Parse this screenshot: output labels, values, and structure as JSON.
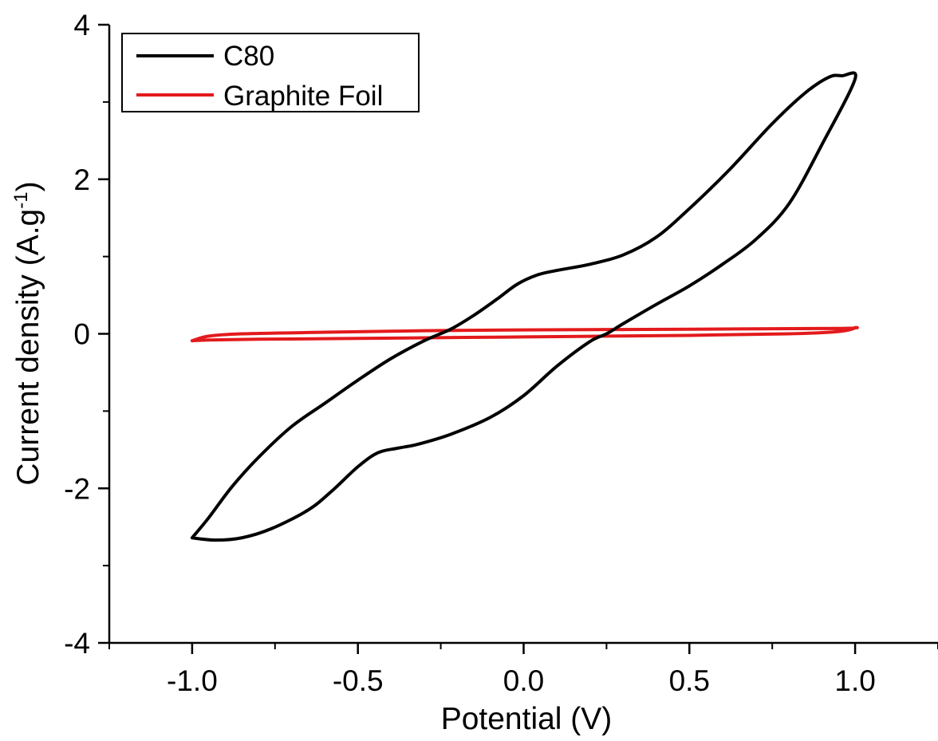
{
  "chart_data": {
    "type": "line",
    "xlabel": "Potential (V)",
    "ylabel": "Current density (A.g",
    "ylabel_sup": "-1",
    "ylabel_close": ")",
    "xlim": [
      -1.25,
      1.25
    ],
    "ylim": [
      -4,
      4
    ],
    "xticks": [
      -1.0,
      -0.5,
      0.0,
      0.5,
      1.0
    ],
    "xtick_labels": [
      "-1.0",
      "-0.5",
      "0.0",
      "0.5",
      "1.0"
    ],
    "yticks": [
      -4,
      -2,
      0,
      2,
      4
    ],
    "ytick_labels": [
      "-4",
      "-2",
      "0",
      "2",
      "4"
    ],
    "grid": false,
    "legend_position": "top-left",
    "series": [
      {
        "name": "C80",
        "color": "#000000",
        "points": [
          [
            -1.0,
            -2.64
          ],
          [
            -0.93,
            -2.67
          ],
          [
            -0.85,
            -2.64
          ],
          [
            -0.76,
            -2.52
          ],
          [
            -0.65,
            -2.28
          ],
          [
            -0.58,
            -2.04
          ],
          [
            -0.5,
            -1.72
          ],
          [
            -0.44,
            -1.54
          ],
          [
            -0.38,
            -1.48
          ],
          [
            -0.32,
            -1.43
          ],
          [
            -0.22,
            -1.3
          ],
          [
            -0.1,
            -1.08
          ],
          [
            0.0,
            -0.8
          ],
          [
            0.1,
            -0.42
          ],
          [
            0.2,
            -0.1
          ],
          [
            0.25,
            0.0
          ],
          [
            0.3,
            0.13
          ],
          [
            0.4,
            0.38
          ],
          [
            0.5,
            0.62
          ],
          [
            0.6,
            0.9
          ],
          [
            0.7,
            1.22
          ],
          [
            0.8,
            1.68
          ],
          [
            0.9,
            2.45
          ],
          [
            1.0,
            3.3
          ],
          [
            0.96,
            3.34
          ],
          [
            0.92,
            3.32
          ],
          [
            0.85,
            3.12
          ],
          [
            0.75,
            2.72
          ],
          [
            0.62,
            2.12
          ],
          [
            0.5,
            1.62
          ],
          [
            0.4,
            1.25
          ],
          [
            0.3,
            1.02
          ],
          [
            0.2,
            0.9
          ],
          [
            0.1,
            0.82
          ],
          [
            0.04,
            0.76
          ],
          [
            -0.02,
            0.64
          ],
          [
            -0.08,
            0.45
          ],
          [
            -0.15,
            0.24
          ],
          [
            -0.22,
            0.06
          ],
          [
            -0.3,
            -0.09
          ],
          [
            -0.4,
            -0.32
          ],
          [
            -0.5,
            -0.6
          ],
          [
            -0.6,
            -0.9
          ],
          [
            -0.7,
            -1.2
          ],
          [
            -0.8,
            -1.6
          ],
          [
            -0.88,
            -1.98
          ],
          [
            -0.95,
            -2.38
          ],
          [
            -1.0,
            -2.64
          ]
        ]
      },
      {
        "name": "Graphite Foil",
        "color": "#e31a1c",
        "points": [
          [
            -1.0,
            -0.09
          ],
          [
            -0.95,
            -0.03
          ],
          [
            -0.85,
            0.0
          ],
          [
            -0.6,
            0.02
          ],
          [
            -0.3,
            0.04
          ],
          [
            0.0,
            0.05
          ],
          [
            0.5,
            0.06
          ],
          [
            0.95,
            0.07
          ],
          [
            1.0,
            0.08
          ],
          [
            0.95,
            0.03
          ],
          [
            0.8,
            0.0
          ],
          [
            0.5,
            -0.02
          ],
          [
            0.0,
            -0.04
          ],
          [
            -0.5,
            -0.06
          ],
          [
            -0.8,
            -0.07
          ],
          [
            -0.95,
            -0.08
          ],
          [
            -1.0,
            -0.09
          ]
        ]
      }
    ]
  }
}
